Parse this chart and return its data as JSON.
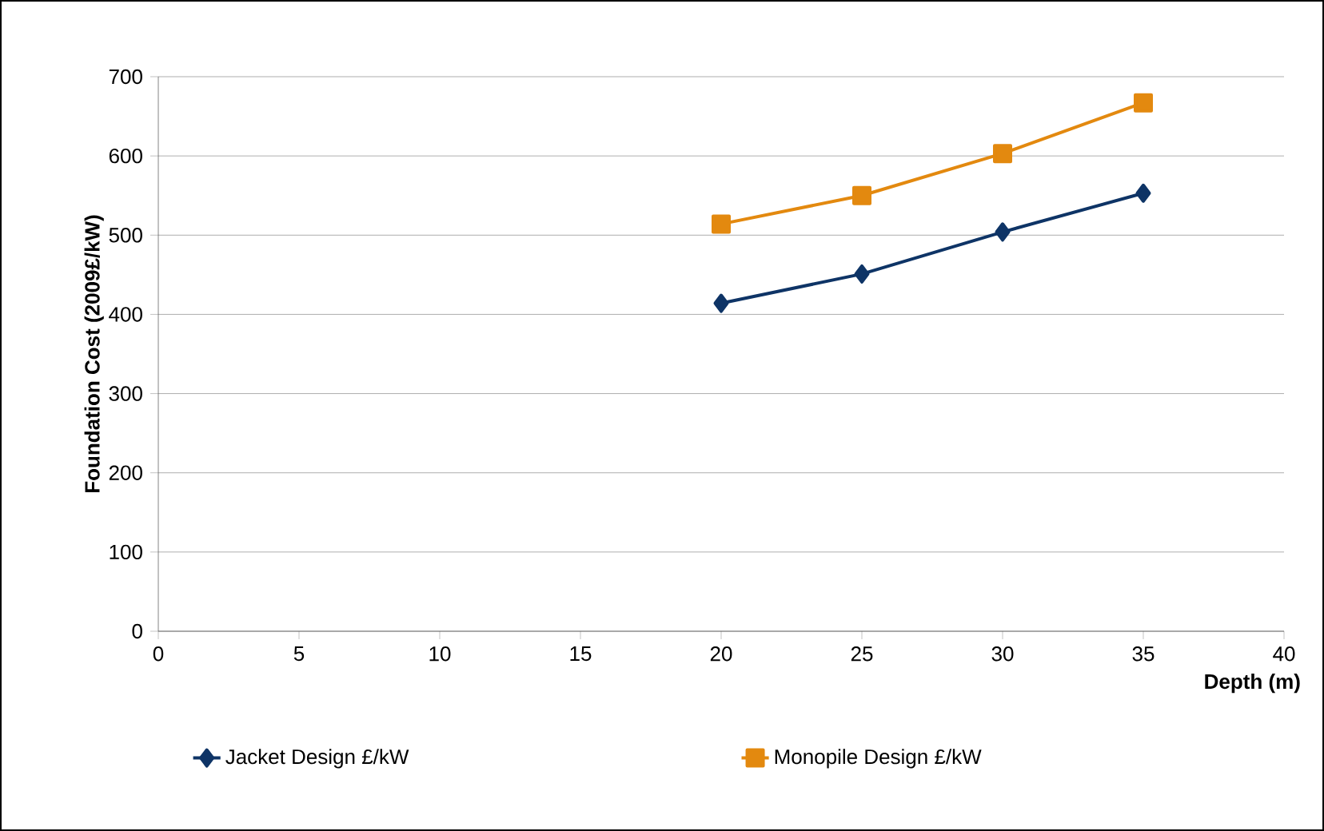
{
  "chart_data": {
    "type": "line",
    "xlabel": "Depth (m)",
    "ylabel": "Foundation Cost (2009£/kW)",
    "xlim": [
      0,
      40
    ],
    "xticks": [
      0,
      5,
      10,
      15,
      20,
      25,
      30,
      35,
      40
    ],
    "ylim": [
      0,
      700
    ],
    "yticks": [
      0,
      100,
      200,
      300,
      400,
      500,
      600,
      700
    ],
    "grid": "y",
    "legend": "bottom",
    "series": [
      {
        "name": "Jacket Design £/kW",
        "color": "#0e3466",
        "marker": "diamond",
        "x": [
          20,
          25,
          30,
          35
        ],
        "values": [
          414,
          451,
          504,
          553
        ]
      },
      {
        "name": "Monopile Design £/kW",
        "color": "#e3890f",
        "marker": "square",
        "x": [
          20,
          25,
          30,
          35
        ],
        "values": [
          514,
          550,
          603,
          667
        ]
      }
    ]
  }
}
